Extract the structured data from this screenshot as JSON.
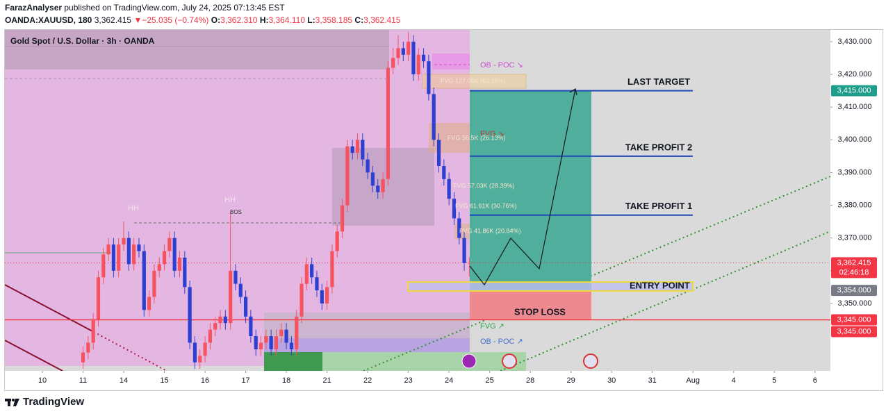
{
  "header": {
    "author": "FarazAnalyser",
    "published": " published on TradingView.com, July 24, 2025 07:13:45 EST",
    "symbol": "OANDA:XAUUSD, 180",
    "last": "3,362.415",
    "arrow": "▼",
    "change": "−25.035 (−0.74%)",
    "o_label": "O:",
    "o": "3,362.310",
    "h_label": "H:",
    "h": "3,364.110",
    "l_label": "L:",
    "l": "3,358.185",
    "c_label": "C:",
    "c": "3,362.415"
  },
  "chart_data": {
    "type": "candlestick",
    "title": "Gold Spot / U.S. Dollar · 3h · OANDA",
    "up_color": "#f7525f",
    "down_color": "#2c3fd1",
    "x": [
      1,
      1.125,
      1.25,
      1.375,
      1.5,
      1.625,
      1.75,
      1.875,
      2,
      2.125,
      2.25,
      2.375,
      2.5,
      2.625,
      2.75,
      2.875,
      3,
      3.125,
      3.25,
      3.375,
      3.5,
      3.625,
      3.75,
      3.875,
      4,
      4.125,
      4.25,
      4.375,
      4.5,
      4.625,
      4.75,
      4.875,
      5,
      5.125,
      5.25,
      5.375,
      5.5,
      5.625,
      5.75,
      5.875,
      6,
      6.125,
      6.25,
      6.375,
      6.5,
      6.625,
      6.75,
      6.875,
      7,
      7.125,
      7.25,
      7.375,
      7.5,
      7.625,
      7.75,
      7.875,
      8,
      8.125,
      8.25,
      8.375,
      8.5,
      8.625,
      8.75,
      8.875,
      9,
      9.125,
      9.25,
      9.375,
      9.5,
      9.625,
      9.75,
      9.875,
      10,
      10.125,
      10.25,
      10.375,
      10.5
    ],
    "open": [
      3332,
      3335,
      3338,
      3345,
      3358,
      3365,
      3368,
      3360,
      3368,
      3370,
      3362,
      3368,
      3366,
      3348,
      3352,
      3360,
      3362,
      3366,
      3370,
      3360,
      3364,
      3355,
      3338,
      3332,
      3334,
      3338,
      3342,
      3344,
      3346,
      3344,
      3360,
      3356,
      3352,
      3346,
      3340,
      3336,
      3338,
      3340,
      3336,
      3340,
      3342,
      3338,
      3336,
      3346,
      3356,
      3362,
      3358,
      3354,
      3350,
      3355,
      3366,
      3372,
      3380,
      3398,
      3396,
      3400,
      3394,
      3390,
      3386,
      3384,
      3388,
      3422,
      3425,
      3428,
      3426,
      3430,
      3420,
      3426,
      3424,
      3414,
      3400,
      3392,
      3388,
      3382,
      3376,
      3370,
      3362.31
    ],
    "high": [
      3337,
      3340,
      3347,
      3360,
      3367,
      3370,
      3370,
      3370,
      3375,
      3372,
      3370,
      3370,
      3368,
      3354,
      3362,
      3364,
      3368,
      3372,
      3372,
      3366,
      3366,
      3357,
      3340,
      3336,
      3340,
      3344,
      3346,
      3348,
      3348,
      3378,
      3362,
      3358,
      3354,
      3348,
      3342,
      3340,
      3342,
      3342,
      3342,
      3344,
      3344,
      3340,
      3348,
      3358,
      3364,
      3364,
      3360,
      3356,
      3357,
      3368,
      3374,
      3382,
      3400,
      3400,
      3402,
      3402,
      3396,
      3392,
      3388,
      3390,
      3424,
      3428,
      3432,
      3430,
      3433,
      3432,
      3428,
      3428,
      3426,
      3416,
      3402,
      3394,
      3390,
      3384,
      3378,
      3372,
      3364.11
    ],
    "low": [
      3330,
      3333,
      3336,
      3343,
      3356,
      3363,
      3358,
      3358,
      3366,
      3360,
      3360,
      3364,
      3346,
      3346,
      3350,
      3358,
      3360,
      3364,
      3358,
      3358,
      3353,
      3336,
      3330,
      3330,
      3332,
      3336,
      3340,
      3342,
      3342,
      3342,
      3354,
      3350,
      3344,
      3338,
      3334,
      3334,
      3336,
      3334,
      3334,
      3338,
      3336,
      3334,
      3334,
      3344,
      3354,
      3356,
      3352,
      3348,
      3348,
      3353,
      3364,
      3370,
      3378,
      3394,
      3394,
      3392,
      3388,
      3384,
      3382,
      3382,
      3386,
      3420,
      3423,
      3424,
      3424,
      3418,
      3418,
      3422,
      3412,
      3398,
      3390,
      3386,
      3380,
      3374,
      3368,
      3360,
      3358.185
    ],
    "close": [
      3335,
      3338,
      3345,
      3358,
      3365,
      3368,
      3360,
      3368,
      3370,
      3362,
      3368,
      3366,
      3348,
      3352,
      3360,
      3362,
      3366,
      3370,
      3360,
      3364,
      3355,
      3338,
      3332,
      3334,
      3338,
      3342,
      3344,
      3346,
      3344,
      3360,
      3356,
      3352,
      3346,
      3340,
      3336,
      3338,
      3340,
      3336,
      3340,
      3342,
      3338,
      3336,
      3346,
      3356,
      3362,
      3358,
      3354,
      3350,
      3355,
      3366,
      3372,
      3380,
      3398,
      3396,
      3400,
      3394,
      3390,
      3386,
      3384,
      3388,
      3422,
      3425,
      3428,
      3426,
      3430,
      3420,
      3426,
      3424,
      3414,
      3400,
      3392,
      3388,
      3382,
      3376,
      3370,
      3362.31,
      3362.415
    ],
    "xlim": [
      -0.923,
      19.38
    ],
    "xticks": [
      {
        "value": 0,
        "label": "10"
      },
      {
        "value": 1,
        "label": "11"
      },
      {
        "value": 2,
        "label": "14"
      },
      {
        "value": 3,
        "label": "15"
      },
      {
        "value": 4,
        "label": "16"
      },
      {
        "value": 5,
        "label": "17"
      },
      {
        "value": 6,
        "label": "18"
      },
      {
        "value": 7,
        "label": "21"
      },
      {
        "value": 8,
        "label": "22"
      },
      {
        "value": 9,
        "label": "23"
      },
      {
        "value": 10,
        "label": "24"
      },
      {
        "value": 11,
        "label": "25"
      },
      {
        "value": 12,
        "label": "28"
      },
      {
        "value": 13,
        "label": "29"
      },
      {
        "value": 14,
        "label": "30"
      },
      {
        "value": 15,
        "label": "31"
      },
      {
        "value": 16,
        "label": "Aug"
      },
      {
        "value": 17,
        "label": "4"
      },
      {
        "value": 18,
        "label": "5"
      },
      {
        "value": 19,
        "label": "6"
      }
    ],
    "ylim": [
      3329.4,
      3433.6
    ],
    "yticks": [
      {
        "value": 3350,
        "label": "3,350.000"
      },
      {
        "value": 3360,
        "label": "3,360.000"
      },
      {
        "value": 3370,
        "label": "3,370.000"
      },
      {
        "value": 3380,
        "label": "3,380.000"
      },
      {
        "value": 3390,
        "label": "3,390.000"
      },
      {
        "value": 3400,
        "label": "3,400.000"
      },
      {
        "value": 3410,
        "label": "3,410.000"
      },
      {
        "value": 3420,
        "label": "3,420.000"
      },
      {
        "value": 3430,
        "label": "3,430.000"
      }
    ],
    "levels": [
      {
        "name": "LAST TARGET",
        "value": 3415
      },
      {
        "name": "TAKE PROFIT 2",
        "value": 3395
      },
      {
        "name": "TAKE PROFIT 1",
        "value": 3377
      }
    ],
    "position": {
      "target": 3415,
      "entry": 3354,
      "stop": 3345,
      "entry_label": "ENTRY POINT",
      "stop_label": "STOP LOSS"
    },
    "price_tags": [
      {
        "value": 3415,
        "label": "3,415.000",
        "color": "#1e9d8a"
      },
      {
        "value": 3362.415,
        "label": "3,362.415",
        "color": "#f23645",
        "countdown": "02:46:18"
      },
      {
        "value": 3354,
        "label": "3,354.000",
        "color": "#787b86"
      },
      {
        "value": 3345,
        "label": "3,345.000",
        "color": "#f23645"
      },
      {
        "value": 3345,
        "label": "3,345.000",
        "color": "#f23645"
      }
    ],
    "annotations": {
      "ob_poc_top": "OB - POC ↘",
      "fvg1": "FVG 127.06K (63.26%)",
      "fvg_arrow_top": "FVG ↘",
      "fvg2": "FVG 56.5K (26.13%)",
      "fvg3": "FVG 57.03K (28.39%)",
      "fvg4": "FVG 61.61K (30.76%)",
      "fvg5": "FVG 41.86K (20.84%)",
      "fvg_arrow_bottom": "FVG ↗",
      "ob_poc_bottom": "OB - POC ↗",
      "hh1": "HH",
      "hh2": "HH",
      "bos": "BOS"
    }
  },
  "footer": {
    "brand": "TradingView"
  }
}
